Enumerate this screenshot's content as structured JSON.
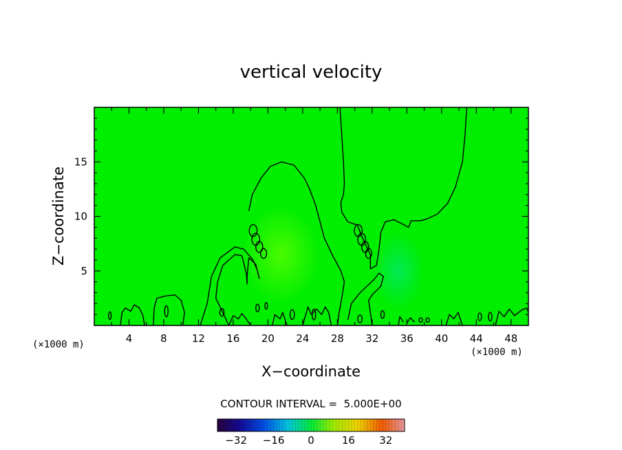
{
  "chart_data": {
    "type": "heatmap",
    "title": "vertical velocity",
    "xlabel": "X−coordinate",
    "ylabel": "Z−coordinate",
    "x_unit_left": "(×1000 m)",
    "x_unit_right": "(×1000 m)",
    "xlim": [
      0,
      50
    ],
    "ylim": [
      0,
      20
    ],
    "x_ticks": [
      4,
      8,
      12,
      16,
      20,
      24,
      28,
      32,
      36,
      40,
      44,
      48
    ],
    "y_ticks": [
      5,
      10,
      15
    ],
    "contour_level": 0,
    "contour_interval_label": "CONTOUR INTERVAL =  5.000E+00",
    "colorbar": {
      "min": -40,
      "max": 40,
      "ticks": [
        -32,
        -16,
        0,
        16,
        32
      ],
      "tick_labels": [
        "−32",
        "−16",
        "0",
        "16",
        "32"
      ]
    },
    "colors": {
      "background_field": "#00ee00",
      "updraft_tint": "#5cff00",
      "downdraft_tint": "#00e870",
      "contour": "#000000"
    },
    "regions": [
      {
        "name": "updraft",
        "sign": "positive",
        "x_center": 21.5,
        "z_center": 6.5,
        "x_halfwidth": 4.5,
        "z_halfwidth": 4.5
      },
      {
        "name": "downdraft",
        "sign": "negative",
        "x_center": 35.0,
        "z_center": 5.0,
        "x_halfwidth": 3.0,
        "z_halfwidth": 3.5
      }
    ],
    "contours": [
      [
        [
          12.2,
          0
        ],
        [
          13.0,
          2.0
        ],
        [
          13.5,
          4.5
        ],
        [
          14.5,
          6.2
        ],
        [
          16.2,
          7.2
        ],
        [
          17.2,
          7.0
        ],
        [
          18.3,
          6.0
        ],
        [
          18.8,
          5.0
        ],
        [
          19.0,
          4.3
        ],
        [
          18.6,
          5.6
        ],
        [
          17.8,
          6.2
        ],
        [
          17.6,
          4.5
        ],
        [
          17.6,
          3.8
        ],
        [
          17.5,
          4.8
        ],
        [
          17.0,
          6.4
        ],
        [
          16.2,
          6.5
        ],
        [
          14.8,
          5.5
        ],
        [
          14.2,
          4.0
        ],
        [
          14.0,
          2.5
        ],
        [
          14.8,
          1.2
        ],
        [
          15.5,
          0
        ]
      ],
      [
        [
          17.8,
          10.5
        ],
        [
          18.2,
          12.0
        ],
        [
          19.2,
          13.5
        ],
        [
          20.3,
          14.6
        ],
        [
          21.6,
          15.0
        ],
        [
          23.0,
          14.7
        ],
        [
          24.2,
          13.5
        ],
        [
          24.8,
          12.5
        ],
        [
          25.5,
          11.0
        ],
        [
          26.0,
          9.5
        ],
        [
          26.5,
          8.0
        ],
        [
          27.4,
          6.5
        ],
        [
          28.4,
          5.0
        ],
        [
          28.8,
          4.0
        ],
        [
          28.5,
          2.5
        ],
        [
          28.2,
          1.2
        ],
        [
          28.0,
          0
        ]
      ],
      [
        [
          28.3,
          20
        ],
        [
          28.5,
          17.5
        ],
        [
          28.7,
          15.0
        ],
        [
          28.8,
          13.0
        ],
        [
          28.7,
          12.0
        ],
        [
          28.4,
          11.3
        ],
        [
          28.5,
          10.4
        ],
        [
          29.2,
          9.5
        ],
        [
          30.3,
          9.2
        ],
        [
          30.9,
          8.0
        ],
        [
          31.8,
          6.5
        ],
        [
          31.8,
          5.2
        ],
        [
          32.5,
          5.5
        ],
        [
          32.8,
          7.0
        ],
        [
          33.0,
          8.5
        ],
        [
          33.5,
          9.5
        ],
        [
          34.5,
          9.7
        ],
        [
          35.5,
          9.3
        ],
        [
          36.2,
          9.0
        ],
        [
          36.5,
          9.6
        ],
        [
          37.6,
          9.6
        ],
        [
          38.4,
          9.8
        ],
        [
          39.5,
          10.2
        ],
        [
          40.7,
          11.2
        ],
        [
          41.6,
          12.7
        ],
        [
          42.4,
          15.0
        ],
        [
          42.7,
          17.5
        ],
        [
          42.9,
          20
        ]
      ],
      [
        [
          29.2,
          0.5
        ],
        [
          29.6,
          2.0
        ],
        [
          30.6,
          3.0
        ],
        [
          31.4,
          3.6
        ],
        [
          32.2,
          4.2
        ],
        [
          32.8,
          4.8
        ],
        [
          33.3,
          4.5
        ],
        [
          33.0,
          3.6
        ],
        [
          32.0,
          2.8
        ],
        [
          31.6,
          2.3
        ],
        [
          31.8,
          1.2
        ],
        [
          32.0,
          0
        ]
      ],
      [
        [
          6.8,
          0
        ],
        [
          6.9,
          1.6
        ],
        [
          7.2,
          2.5
        ],
        [
          8.2,
          2.7
        ],
        [
          9.3,
          2.8
        ],
        [
          10.0,
          2.3
        ],
        [
          10.4,
          1.2
        ],
        [
          10.2,
          0
        ]
      ],
      [
        [
          3.0,
          0
        ],
        [
          3.2,
          1.2
        ],
        [
          3.6,
          1.6
        ],
        [
          4.2,
          1.3
        ],
        [
          4.6,
          1.9
        ],
        [
          5.2,
          1.6
        ],
        [
          5.6,
          0.9
        ],
        [
          5.8,
          0
        ]
      ],
      [
        [
          35.0,
          0
        ],
        [
          35.2,
          0.8
        ],
        [
          35.6,
          0.3
        ]
      ],
      [
        [
          36.0,
          0.2
        ],
        [
          36.4,
          0.7
        ],
        [
          36.9,
          0.3
        ]
      ],
      [
        [
          40.5,
          0
        ],
        [
          40.9,
          1.0
        ],
        [
          41.4,
          0.6
        ],
        [
          41.9,
          1.2
        ],
        [
          42.4,
          0
        ]
      ],
      [
        [
          46.2,
          0
        ],
        [
          46.6,
          1.3
        ],
        [
          47.2,
          0.8
        ],
        [
          47.8,
          1.5
        ],
        [
          48.4,
          0.9
        ],
        [
          49.2,
          1.4
        ],
        [
          49.8,
          1.6
        ],
        [
          50,
          1.2
        ]
      ],
      [
        [
          24.0,
          0
        ],
        [
          24.6,
          1.7
        ],
        [
          25.0,
          1.0
        ],
        [
          25.6,
          1.5
        ],
        [
          26.2,
          1.0
        ],
        [
          26.6,
          1.7
        ],
        [
          27.0,
          1.2
        ],
        [
          27.3,
          0
        ]
      ],
      [
        [
          20.5,
          0
        ],
        [
          20.8,
          1.0
        ],
        [
          21.4,
          0.6
        ],
        [
          21.7,
          1.2
        ],
        [
          22.2,
          0
        ]
      ],
      [
        [
          15.5,
          0
        ],
        [
          16.0,
          0.9
        ],
        [
          16.6,
          0.6
        ],
        [
          17.0,
          1.1
        ],
        [
          17.5,
          0.6
        ],
        [
          18.0,
          0
        ]
      ]
    ],
    "loops": [
      [
        18.3,
        8.7,
        0.45,
        0.55
      ],
      [
        18.6,
        7.9,
        0.45,
        0.55
      ],
      [
        19.0,
        7.2,
        0.4,
        0.5
      ],
      [
        19.5,
        6.6,
        0.35,
        0.45
      ],
      [
        30.4,
        8.7,
        0.45,
        0.55
      ],
      [
        30.8,
        7.9,
        0.45,
        0.55
      ],
      [
        31.2,
        7.2,
        0.4,
        0.5
      ],
      [
        31.6,
        6.6,
        0.35,
        0.45
      ],
      [
        1.8,
        0.9,
        0.15,
        0.35
      ],
      [
        8.3,
        1.3,
        0.2,
        0.5
      ],
      [
        14.7,
        1.2,
        0.25,
        0.35
      ],
      [
        18.8,
        1.6,
        0.2,
        0.35
      ],
      [
        19.8,
        1.8,
        0.15,
        0.3
      ],
      [
        22.8,
        1.0,
        0.25,
        0.45
      ],
      [
        25.3,
        1.0,
        0.2,
        0.5
      ],
      [
        30.6,
        0.6,
        0.25,
        0.35
      ],
      [
        33.2,
        1.0,
        0.2,
        0.35
      ],
      [
        37.6,
        0.5,
        0.2,
        0.2
      ],
      [
        38.4,
        0.5,
        0.2,
        0.2
      ],
      [
        44.4,
        0.8,
        0.2,
        0.35
      ],
      [
        45.6,
        0.8,
        0.2,
        0.4
      ]
    ]
  }
}
